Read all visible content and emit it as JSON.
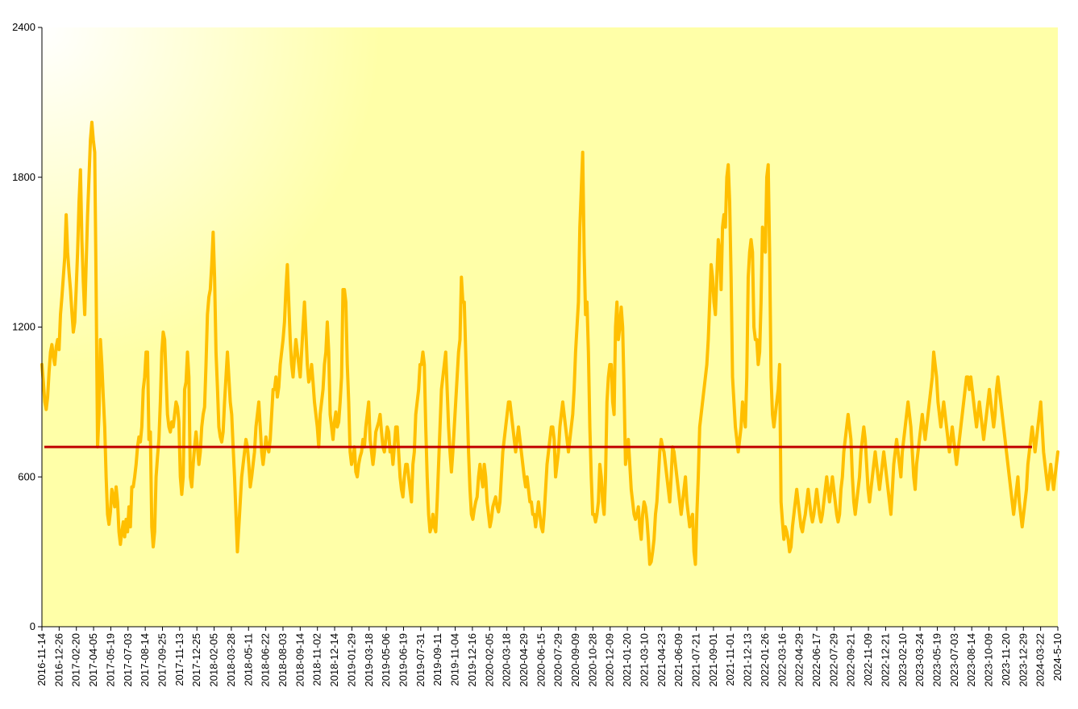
{
  "chart_data": {
    "type": "line",
    "title": "",
    "xlabel": "",
    "ylabel": "",
    "ylim": [
      0,
      2400
    ],
    "yticks": [
      0,
      600,
      1200,
      1800,
      2400
    ],
    "grid": false,
    "legend": "none",
    "colors": {
      "line": "#ffbf00",
      "reference": "#c00000",
      "background_light": "#ffffe0",
      "background": "#ffffa8"
    },
    "x_tick_labels": [
      "2016-11-14",
      "2016-12-26",
      "2017-02-20",
      "2017-04-05",
      "2017-05-19",
      "2017-07-03",
      "2017-08-14",
      "2017-09-25",
      "2017-11-13",
      "2017-12-25",
      "2018-02-05",
      "2018-03-28",
      "2018-05-11",
      "2018-06-22",
      "2018-08-03",
      "2018-09-14",
      "2018-11-02",
      "2018-12-14",
      "2019-01-29",
      "2019-03-18",
      "2019-05-06",
      "2019-06-19",
      "2019-07-31",
      "2019-09-11",
      "2019-11-04",
      "2019-12-16",
      "2020-02-05",
      "2020-03-18",
      "2020-04-29",
      "2020-06-15",
      "2020-07-29",
      "2020-09-09",
      "2020-10-28",
      "2020-12-09",
      "2021-01-20",
      "2021-03-10",
      "2021-04-23",
      "2021-06-09",
      "2021-07-21",
      "2021-09-01",
      "2021-11-01",
      "2021-12-13",
      "2022-01-26",
      "2022-03-16",
      "2022-04-29",
      "2022-06-17",
      "2022-07-29",
      "2022-09-21",
      "2022-11-09",
      "2022-12-21",
      "2023-02-10",
      "2023-03-24",
      "2023-05-19",
      "2023-07-03",
      "2023-08-14",
      "2023-10-09",
      "2023-11-20",
      "2023-12-29",
      "2024-03-22",
      "2024-5-10"
    ],
    "reference_value": 720,
    "series": [
      {
        "values": [
          1050,
          980,
          900,
          870,
          920,
          1020,
          1100,
          1130,
          1080,
          1050,
          1120,
          1150,
          1110,
          1250,
          1320,
          1400,
          1480,
          1650,
          1500,
          1420,
          1350,
          1260,
          1180,
          1220,
          1350,
          1500,
          1700,
          1830,
          1550,
          1380,
          1250,
          1450,
          1650,
          1800,
          1950,
          2020,
          1950,
          1900,
          1350,
          720,
          850,
          1150,
          1050,
          920,
          800,
          600,
          450,
          410,
          460,
          550,
          520,
          480,
          560,
          500,
          380,
          330,
          380,
          420,
          360,
          430,
          380,
          480,
          400,
          560,
          560,
          600,
          650,
          720,
          760,
          740,
          800,
          950,
          1000,
          1100,
          1100,
          750,
          780,
          400,
          320,
          380,
          600,
          680,
          750,
          900,
          1100,
          1180,
          1150,
          1000,
          850,
          800,
          780,
          820,
          800,
          850,
          900,
          880,
          820,
          600,
          530,
          600,
          950,
          980,
          1100,
          1000,
          600,
          560,
          650,
          720,
          780,
          720,
          650,
          700,
          800,
          850,
          880,
          1050,
          1250,
          1320,
          1350,
          1450,
          1580,
          1400,
          1100,
          960,
          800,
          760,
          740,
          780,
          900,
          1000,
          1100,
          1000,
          900,
          850,
          720,
          600,
          450,
          300,
          400,
          500,
          600,
          650,
          700,
          750,
          720,
          650,
          560,
          600,
          650,
          700,
          800,
          850,
          900,
          800,
          700,
          650,
          700,
          760,
          720,
          700,
          750,
          850,
          950,
          950,
          1000,
          920,
          960,
          1050,
          1100,
          1150,
          1220,
          1350,
          1450,
          1300,
          1150,
          1050,
          1000,
          1080,
          1150,
          1100,
          1050,
          1000,
          1100,
          1200,
          1300,
          1180,
          1050,
          980,
          1000,
          1050,
          980,
          900,
          850,
          800,
          720,
          850,
          900,
          950,
          1050,
          1100,
          1220,
          1100,
          850,
          800,
          750,
          820,
          860,
          800,
          820,
          900,
          1000,
          1350,
          1350,
          1300,
          1050,
          900,
          700,
          650,
          680,
          720,
          620,
          600,
          650,
          680,
          700,
          750,
          720,
          800,
          850,
          900,
          750,
          700,
          650,
          700,
          780,
          800,
          820,
          850,
          780,
          720,
          700,
          750,
          800,
          780,
          700,
          720,
          650,
          720,
          800,
          800,
          700,
          600,
          550,
          520,
          600,
          650,
          650,
          600,
          550,
          500,
          650,
          700,
          850,
          900,
          950,
          1050,
          1050,
          1100,
          1050,
          800,
          600,
          450,
          380,
          400,
          450,
          400,
          380,
          500,
          650,
          800,
          950,
          1000,
          1050,
          1100,
          950,
          800,
          700,
          620,
          700,
          800,
          900,
          1000,
          1100,
          1150,
          1400,
          1300,
          1300,
          1100,
          900,
          700,
          550,
          450,
          430,
          470,
          500,
          520,
          600,
          650,
          600,
          560,
          650,
          600,
          500,
          450,
          400,
          430,
          480,
          500,
          520,
          480,
          460,
          500,
          600,
          700,
          750,
          800,
          850,
          900,
          900,
          850,
          800,
          750,
          700,
          750,
          800,
          750,
          700,
          650,
          600,
          560,
          600,
          550,
          500,
          500,
          450,
          450,
          400,
          450,
          500,
          450,
          400,
          380,
          450,
          550,
          650,
          700,
          750,
          800,
          800,
          750,
          600,
          650,
          700,
          800,
          850,
          900,
          850,
          800,
          750,
          700,
          750,
          800,
          850,
          950,
          1100,
          1200,
          1300,
          1600,
          1750,
          1900,
          1500,
          1250,
          1300,
          1100,
          800,
          600,
          450,
          450,
          420,
          450,
          500,
          650,
          600,
          500,
          450,
          600,
          900,
          1000,
          1050,
          1050,
          900,
          850,
          1200,
          1300,
          1150,
          1200,
          1280,
          1200,
          950,
          650,
          700,
          750,
          650,
          550,
          500,
          450,
          430,
          450,
          480,
          400,
          350,
          450,
          500,
          480,
          430,
          350,
          250,
          260,
          300,
          350,
          450,
          500,
          600,
          700,
          750,
          720,
          700,
          650,
          600,
          550,
          500,
          600,
          720,
          700,
          650,
          600,
          550,
          500,
          450,
          500,
          550,
          600,
          500,
          450,
          400,
          430,
          450,
          300,
          250,
          450,
          600,
          800,
          850,
          900,
          950,
          1000,
          1050,
          1150,
          1300,
          1450,
          1400,
          1300,
          1250,
          1400,
          1550,
          1500,
          1350,
          1600,
          1650,
          1600,
          1800,
          1850,
          1700,
          1400,
          1000,
          900,
          800,
          750,
          700,
          750,
          800,
          900,
          850,
          800,
          1000,
          1400,
          1500,
          1550,
          1500,
          1200,
          1150,
          1150,
          1050,
          1100,
          1300,
          1600,
          1550,
          1500,
          1800,
          1850,
          1500,
          1000,
          850,
          800,
          850,
          900,
          950,
          1050,
          500,
          420,
          350,
          400,
          380,
          350,
          300,
          320,
          400,
          450,
          500,
          550,
          500,
          450,
          400,
          380,
          420,
          450,
          500,
          550,
          500,
          450,
          420,
          450,
          500,
          550,
          500,
          450,
          420,
          450,
          500,
          550,
          600,
          550,
          500,
          550,
          600,
          550,
          500,
          450,
          420,
          450,
          550,
          600,
          700,
          750,
          800,
          850,
          800,
          750,
          600,
          500,
          450,
          500,
          550,
          600,
          700,
          750,
          800,
          750,
          650,
          550,
          500,
          550,
          600,
          650,
          700,
          650,
          600,
          550,
          600,
          650,
          700,
          650,
          600,
          550,
          500,
          450,
          550,
          650,
          700,
          750,
          700,
          650,
          600,
          700,
          750,
          800,
          850,
          900,
          850,
          800,
          700,
          600,
          550,
          650,
          700,
          750,
          800,
          850,
          800,
          750,
          800,
          850,
          900,
          950,
          1000,
          1100,
          1050,
          1000,
          900,
          850,
          800,
          850,
          900,
          850,
          800,
          750,
          700,
          750,
          800,
          750,
          700,
          650,
          700,
          750,
          800,
          850,
          900,
          950,
          1000,
          1000,
          950,
          1000,
          950,
          900,
          850,
          800,
          850,
          900,
          850,
          800,
          750,
          800,
          850,
          900,
          950,
          900,
          850,
          800,
          850,
          950,
          1000,
          950,
          900,
          850,
          800,
          750,
          700,
          650,
          600,
          550,
          500,
          450,
          500,
          550,
          600,
          500,
          450,
          400,
          450,
          500,
          550,
          650,
          700,
          750,
          800,
          750,
          700,
          750,
          800,
          850,
          900,
          800,
          700,
          650,
          600,
          550,
          600,
          650,
          600,
          550,
          600,
          650,
          700
        ]
      }
    ]
  }
}
